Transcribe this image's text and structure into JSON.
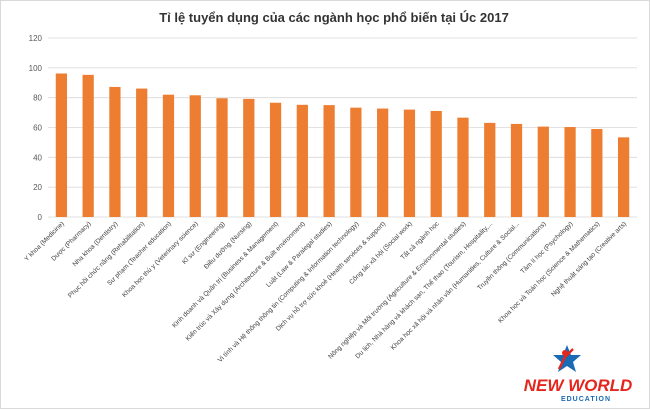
{
  "chart_data": {
    "type": "bar",
    "title": "Tỉ lệ tuyển dụng của các ngành học phổ biến tại Úc 2017",
    "xlabel": "",
    "ylabel": "",
    "ylim": [
      0,
      120
    ],
    "yticks": [
      0,
      20,
      40,
      60,
      80,
      100,
      120
    ],
    "grid": true,
    "legend": "none",
    "bar_color": "#ed7d31",
    "categories": [
      "Y khoa (Medicine)",
      "Dược (Pharmacy)",
      "Nha khoa (Dentistry)",
      "Phục hồi chức năng (Rehabilitation)",
      "Sư phạm (Teacher education)",
      "Khoa học thú y (Veterinary science)",
      "Kĩ sư (Engineering)",
      "Điều dưỡng (Nursing)",
      "Kinh doanh và Quản trị (Business & Management)",
      "Kiến trúc và Xây dựng (Architecture & Built environment)",
      "Luật (Law & Paralegal studies)",
      "Vi tính và Hệ thống thông tin (Computing & Information technology)",
      "Dịch vụ hỗ trợ sức khoẻ (Health services & support)",
      "Công tác xã hội (Social work)",
      "Tất cả ngành học",
      "Nông nghiệp và Môi trường (Agriculture & Environmental studies)",
      "Du lịch, Nhà hàng và khách sạn, Thể thao (Tourism, Hospitality,...",
      "Khoa học xã hội và nhân văn (Humanities, Culture & Social...",
      "Truyền thông (Communications)",
      "Tâm lí học (Psychology)",
      "Khoa học và Toán học (Science & Mathematics)",
      "Nghệ thuật sáng tạo (Creative arts)"
    ],
    "values": [
      96.2,
      95.3,
      87.2,
      86.1,
      82.0,
      81.6,
      79.6,
      79.2,
      76.6,
      75.2,
      75.0,
      73.3,
      72.7,
      72.0,
      71.1,
      66.6,
      63.1,
      62.4,
      60.6,
      60.3,
      59.0,
      53.4
    ]
  },
  "logo": {
    "name": "NEW WORLD",
    "sub": "EDUCATION"
  }
}
